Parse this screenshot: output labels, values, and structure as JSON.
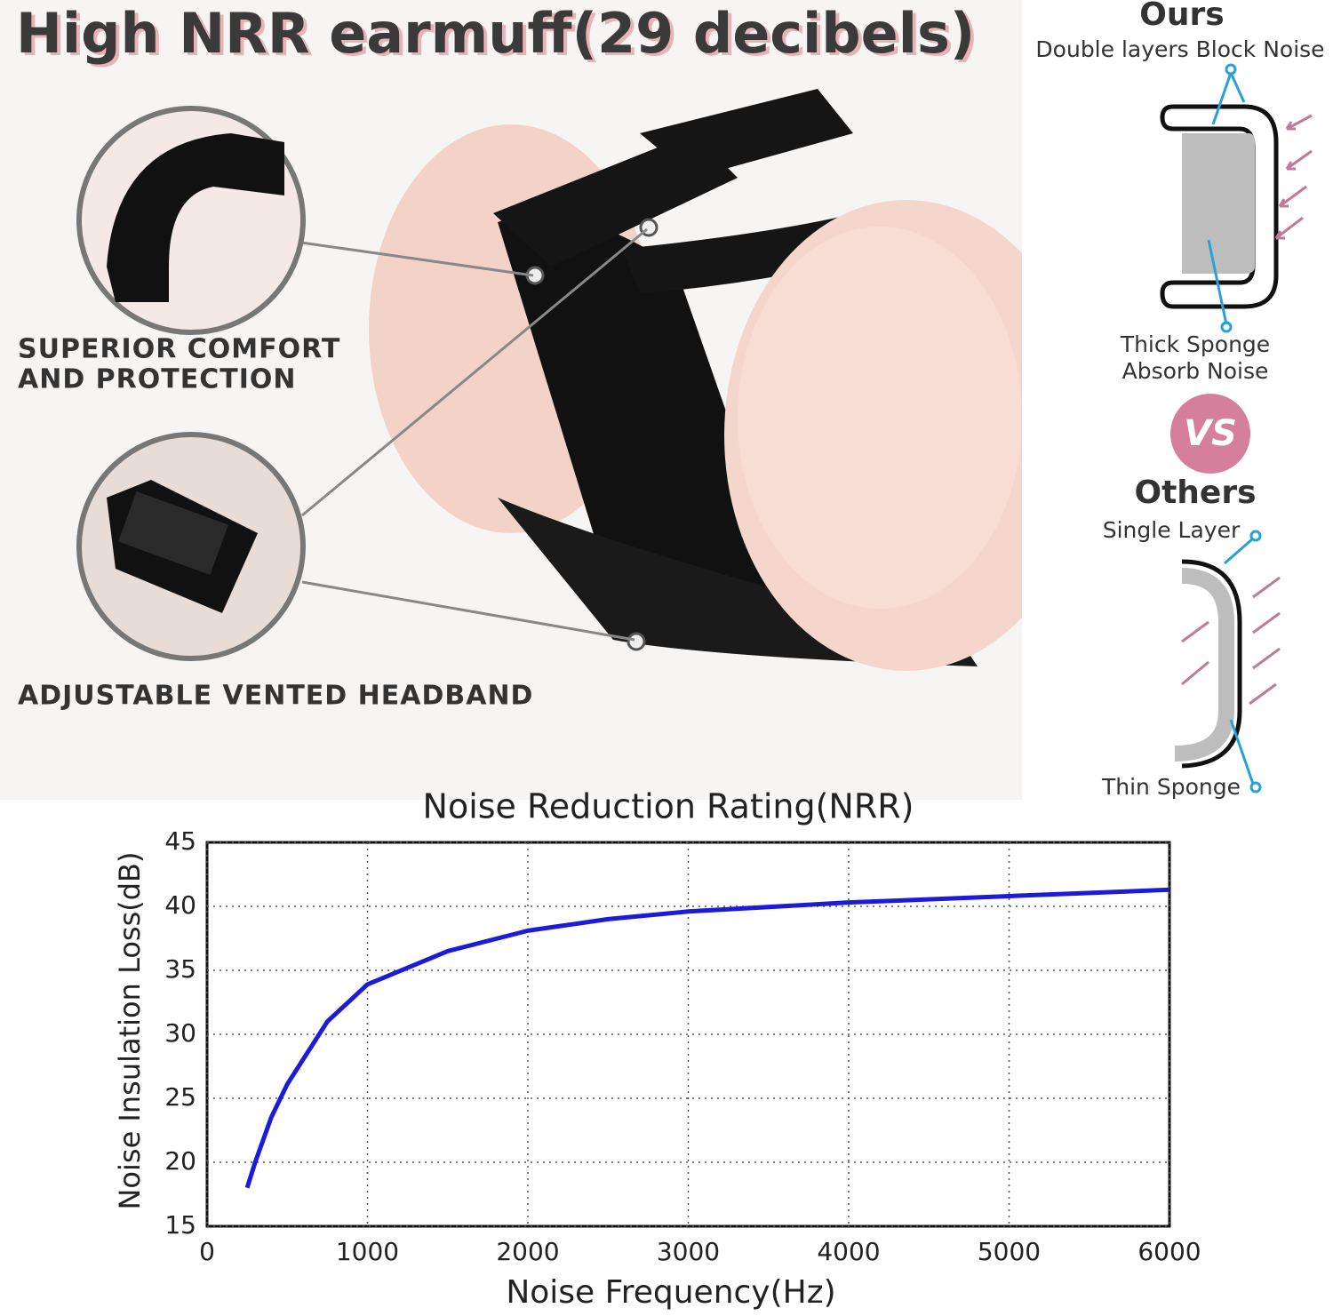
{
  "header": {
    "title": "High NRR earmuff(29 decibels)"
  },
  "callouts": [
    {
      "lines": [
        "SUPERIOR COMFORT",
        "AND PROTECTION"
      ]
    },
    {
      "lines": [
        "ADJUSTABLE VENTED HEADBAND"
      ]
    }
  ],
  "comparison": {
    "ours": {
      "heading": "Ours",
      "top_label": "Double layers Block Noise",
      "bottom_label": [
        "Thick Sponge",
        "Absorb Noise"
      ]
    },
    "vs": "VS",
    "others": {
      "heading": "Others",
      "top_label": "Single Layer",
      "bottom_label": "Thin Sponge"
    }
  },
  "chart_data": {
    "type": "line",
    "title": "Noise Reduction Rating(NRR)",
    "x_label": "Noise Frequency(Hz)",
    "y_label": "Noise Insulation Loss(dB)",
    "x": [
      250,
      300,
      400,
      500,
      750,
      1000,
      1500,
      2000,
      2500,
      3000,
      4000,
      5000,
      6000
    ],
    "series": [
      {
        "name": "NRR",
        "color": "#1c1cd8",
        "values": [
          18,
          20,
          23.5,
          26.1,
          31,
          33.9,
          36.5,
          38.1,
          39,
          39.6,
          40.3,
          40.8,
          41.3
        ]
      }
    ],
    "xlim": [
      0,
      6000
    ],
    "xticks": [
      0,
      1000,
      2000,
      3000,
      4000,
      5000,
      6000
    ],
    "ylim": [
      15,
      45
    ],
    "yticks": [
      15,
      20,
      25,
      30,
      35,
      40,
      45
    ],
    "grid": true
  }
}
